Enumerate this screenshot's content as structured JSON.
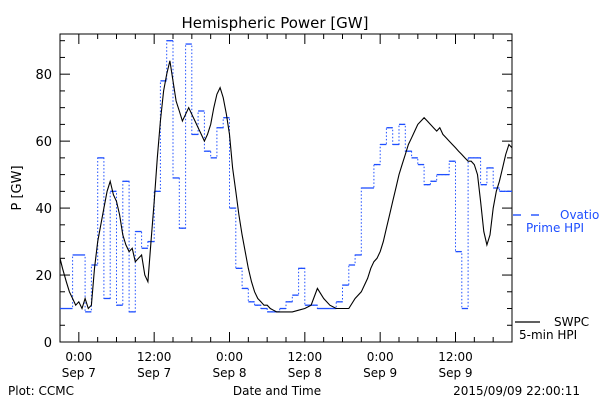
{
  "colors": {
    "black": "#000000",
    "blue": "#1f4fff"
  },
  "chart_data": {
    "type": "line",
    "title": "Hemispheric Power [GW]",
    "ylabel": "P [GW]",
    "xlabel": "Date and Time",
    "ylim": [
      0,
      92
    ],
    "xlim_hours": [
      -3,
      69
    ],
    "y_ticks": [
      0,
      20,
      40,
      60,
      80
    ],
    "x_ticks": [
      {
        "hour": 0,
        "time": "0:00",
        "date": "Sep 7"
      },
      {
        "hour": 12,
        "time": "12:00",
        "date": "Sep 7"
      },
      {
        "hour": 24,
        "time": "0:00",
        "date": "Sep 8"
      },
      {
        "hour": 36,
        "time": "12:00",
        "date": "Sep 8"
      },
      {
        "hour": 48,
        "time": "0:00",
        "date": "Sep 9"
      },
      {
        "hour": 60,
        "time": "12:00",
        "date": "Sep 9"
      }
    ],
    "series": [
      {
        "name": "SWPC 5-min HPI",
        "style": "solid",
        "color": "#000000",
        "x": [
          -3,
          -2.6,
          -2,
          -1.5,
          -1,
          -0.5,
          0,
          0.5,
          1,
          1.5,
          2,
          2.5,
          3,
          3.5,
          4,
          4.5,
          5,
          5.5,
          6,
          6.5,
          7,
          7.5,
          8,
          8.5,
          9,
          9.5,
          10,
          10.5,
          11,
          11.5,
          12,
          12.5,
          13,
          13.5,
          14,
          14.5,
          15,
          15.5,
          16,
          16.5,
          17,
          17.5,
          18,
          18.5,
          19,
          19.5,
          20,
          20.5,
          21,
          21.5,
          22,
          22.5,
          23,
          23.5,
          24,
          24.5,
          25,
          25.5,
          26,
          26.5,
          27,
          27.5,
          28,
          28.5,
          29,
          29.5,
          30,
          30.5,
          31,
          31.5,
          32,
          33,
          34,
          35,
          36,
          37,
          38,
          39,
          40,
          41,
          42,
          43,
          44,
          45,
          46,
          46.5,
          47,
          47.5,
          48,
          48.5,
          49,
          49.5,
          50,
          50.5,
          51,
          51.5,
          52,
          52.5,
          53,
          53.5,
          54,
          54.5,
          55,
          55.5,
          56,
          56.5,
          57,
          57.5,
          58,
          58.5,
          59,
          59.5,
          60,
          60.5,
          61,
          61.5,
          62,
          62.5,
          63,
          63.5,
          64,
          64.5,
          65,
          65.5,
          66,
          66.5,
          67,
          67.5,
          68,
          68.5,
          69
        ],
        "values": [
          25,
          22,
          18,
          15,
          13,
          11,
          12,
          10,
          13,
          10,
          11,
          22,
          30,
          35,
          40,
          45,
          48,
          44,
          42,
          38,
          32,
          29,
          27,
          28,
          24,
          25,
          26,
          20,
          18,
          30,
          42,
          55,
          66,
          75,
          80,
          84,
          78,
          72,
          69,
          66,
          68,
          70,
          68,
          66,
          64,
          62,
          60,
          62,
          65,
          70,
          74,
          76,
          73,
          68,
          62,
          52,
          45,
          38,
          32,
          27,
          22,
          18,
          15,
          13,
          12,
          11,
          11,
          10,
          9.5,
          9,
          9,
          9,
          9,
          9.5,
          10,
          11,
          16,
          13,
          11,
          10,
          10,
          10,
          13,
          15,
          19,
          22,
          24,
          25,
          27,
          30,
          34,
          38,
          42,
          46,
          50,
          53,
          56,
          59,
          61,
          63,
          65,
          66,
          67,
          66,
          65,
          64,
          63,
          64,
          62,
          61,
          60,
          59,
          58,
          57,
          56,
          55,
          54,
          54,
          53,
          50,
          42,
          33,
          29,
          32,
          40,
          45,
          48,
          52,
          56,
          59,
          58
        ]
      },
      {
        "name": "Ovation Prime HPI",
        "style": "dotted-step",
        "color": "#1f4fff",
        "step_start_hours": [
          -3,
          -1,
          1,
          2,
          3,
          4,
          5,
          6,
          7,
          8,
          9,
          10,
          11,
          12,
          13,
          14,
          15,
          16,
          17,
          18,
          19,
          20,
          21,
          22,
          23,
          24,
          25,
          26,
          27,
          28,
          29,
          30,
          31,
          32,
          33,
          34,
          35,
          36,
          37,
          38,
          39,
          40,
          41,
          42,
          43,
          44,
          45,
          46,
          47,
          48,
          49,
          50,
          51,
          52,
          53,
          54,
          55,
          56,
          57,
          58,
          59,
          60,
          61,
          62,
          63,
          64,
          65,
          66,
          67,
          68
        ],
        "values": [
          10,
          26,
          9,
          23,
          55,
          13,
          45,
          11,
          48,
          9,
          33,
          28,
          30,
          45,
          78,
          90,
          49,
          34,
          89,
          62,
          69,
          57,
          55,
          64,
          67,
          40,
          22,
          16,
          12,
          11,
          10,
          9,
          9,
          10,
          12,
          14,
          22,
          11,
          11,
          10,
          10,
          10,
          12,
          17,
          23,
          26,
          46,
          46,
          53,
          59,
          64,
          59,
          65,
          57,
          55,
          53,
          47,
          48,
          50,
          50,
          54,
          27,
          10,
          55,
          55,
          47,
          52,
          46,
          45,
          45
        ],
        "end_hour": 69
      }
    ],
    "legend": [
      {
        "symbol": "solid",
        "lines": [
          "SWPC",
          "5-min HPI"
        ]
      },
      {
        "symbol": "dashed",
        "lines": [
          "Ovation",
          "Prime HPI"
        ]
      }
    ]
  },
  "footer": {
    "left": "Plot: CCMC",
    "right": "2015/09/09 22:00:11"
  }
}
